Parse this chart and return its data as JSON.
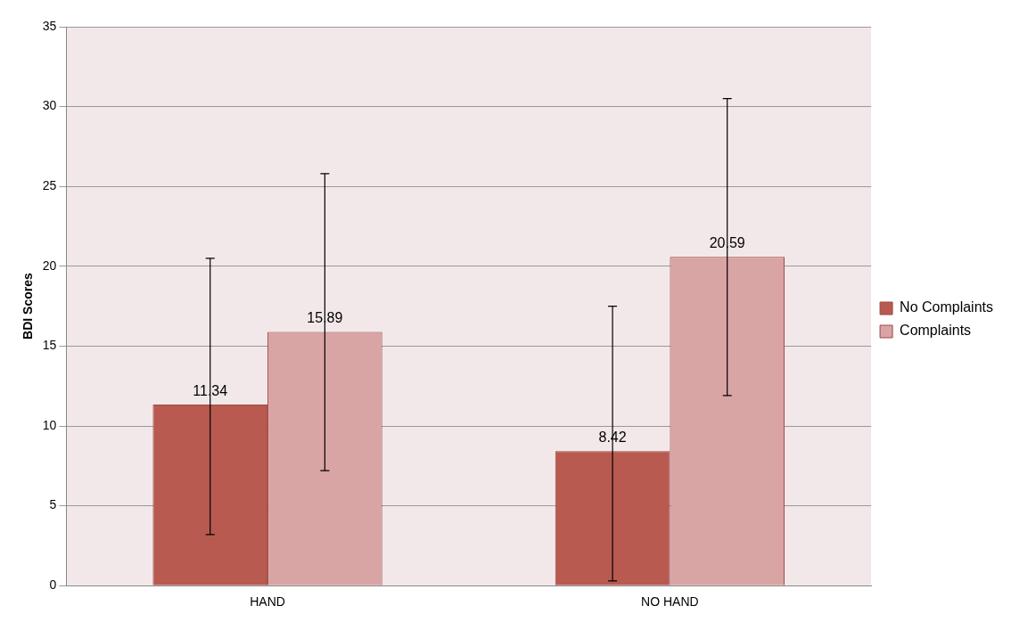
{
  "chart_data": {
    "type": "bar",
    "ylabel": "BDI Scores",
    "categories": [
      "HAND",
      "NO HAND"
    ],
    "series": [
      {
        "name": "No Complaints",
        "color": "#b85a50",
        "values": [
          11.34,
          8.42
        ],
        "errors": [
          [
            3.2,
            20.5
          ],
          [
            0.3,
            17.5
          ]
        ]
      },
      {
        "name": "Complaints",
        "color": "#d9a4a4",
        "values": [
          15.89,
          20.59
        ],
        "errors": [
          [
            7.2,
            25.8
          ],
          [
            11.9,
            30.5
          ]
        ]
      }
    ],
    "ylim": [
      0,
      35
    ],
    "yticks": [
      0,
      5,
      10,
      15,
      20,
      25,
      30,
      35
    ],
    "grid": "y",
    "legend": "right",
    "data_labels": true
  }
}
